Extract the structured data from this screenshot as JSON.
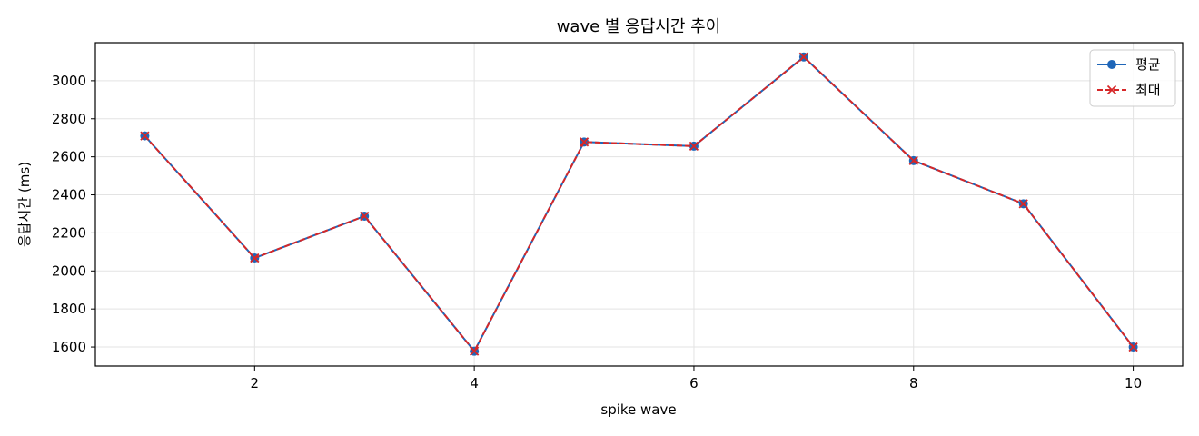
{
  "chart_data": {
    "type": "line",
    "title": "wave 별 응답시간 추이",
    "xlabel": "spike wave",
    "ylabel": "응답시간 (ms)",
    "x": [
      1,
      2,
      3,
      4,
      5,
      6,
      7,
      8,
      9,
      10
    ],
    "xlim": [
      0.55,
      10.45
    ],
    "ylim": [
      1500,
      3200
    ],
    "x_ticks": [
      2,
      4,
      6,
      8,
      10
    ],
    "y_ticks": [
      1600,
      1800,
      2000,
      2200,
      2400,
      2600,
      2800,
      3000
    ],
    "grid": true,
    "legend_position": "top-right",
    "series": [
      {
        "name": "평균",
        "values": [
          2710,
          2068,
          2288,
          1578,
          2678,
          2656,
          3125,
          2580,
          2353,
          1600
        ],
        "color": "#1f66b8",
        "line_style": "solid",
        "marker": "circle"
      },
      {
        "name": "최대",
        "values": [
          2710,
          2068,
          2288,
          1578,
          2678,
          2656,
          3125,
          2580,
          2353,
          1600
        ],
        "color": "#d62728",
        "line_style": "dashed",
        "marker": "x"
      }
    ]
  }
}
